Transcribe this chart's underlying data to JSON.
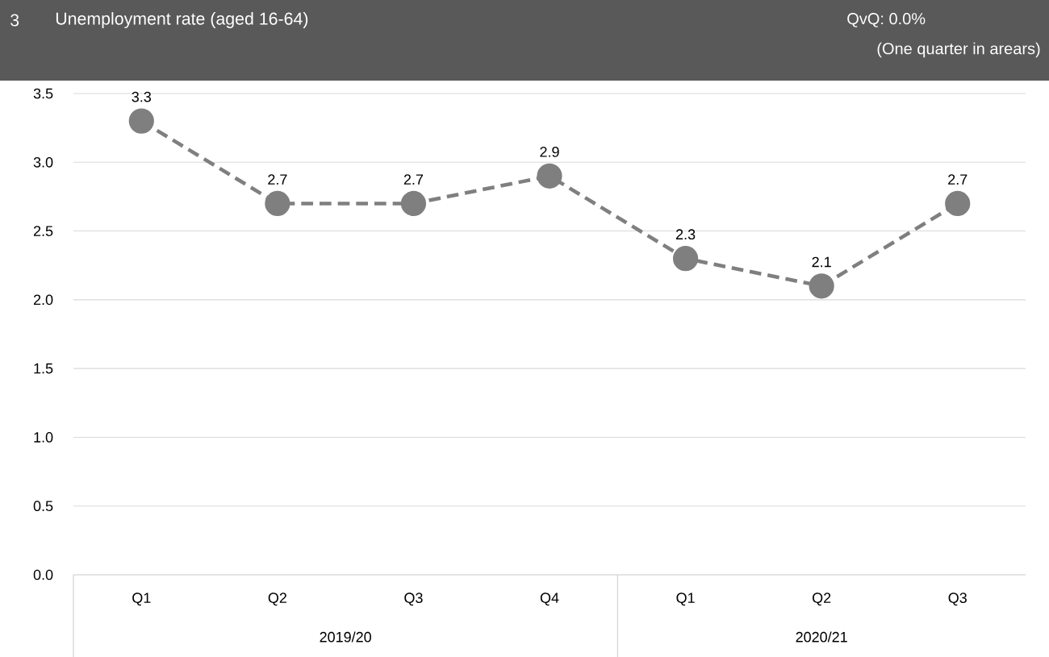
{
  "chart_data": {
    "type": "line",
    "title": "Unemployment rate (aged 16-64)",
    "subtitle": "QvQ: 0.0%",
    "annotations": [
      "3",
      "(One quarter in arears)",
      "2019/20",
      "2020/21"
    ],
    "categories": [
      "Q1",
      "Q2",
      "Q3",
      "Q4",
      "Q1",
      "Q2",
      "Q3"
    ],
    "values": [
      3.3,
      2.7,
      2.7,
      2.9,
      2.3,
      2.1,
      2.7
    ],
    "color": "#7f7f7f",
    "marker": "circle",
    "line_style": "dashed",
    "data_labels": true,
    "grid": "y",
    "ylim": [
      0,
      3.5
    ],
    "yticks": [
      {
        "value": 0,
        "label": "0.0"
      },
      {
        "value": 0.5,
        "label": "0.5"
      },
      {
        "value": 1,
        "label": "1.0"
      },
      {
        "value": 1.5,
        "label": "1.5"
      },
      {
        "value": 2,
        "label": "2.0"
      },
      {
        "value": 2.5,
        "label": "2.5"
      },
      {
        "value": 3,
        "label": "3.0"
      },
      {
        "value": 3.5,
        "label": "3.5"
      }
    ]
  }
}
